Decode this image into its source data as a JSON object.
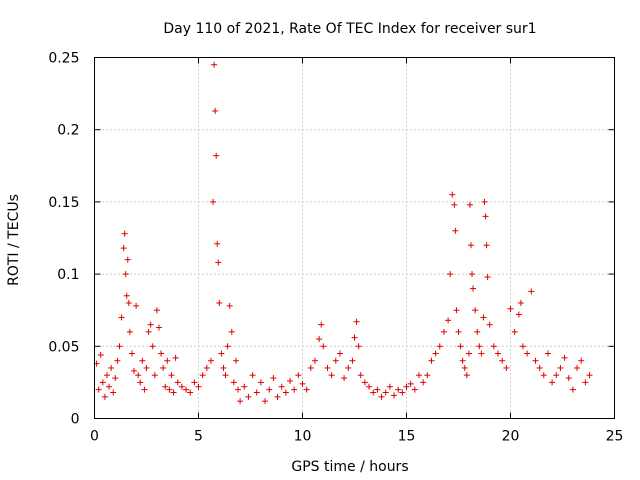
{
  "chart_data": {
    "type": "scatter",
    "title": "Day 110 of 2021, Rate Of TEC Index for receiver sur1",
    "xlabel": "GPS time / hours",
    "ylabel": "ROTI / TECUs",
    "xlim": [
      0,
      25
    ],
    "ylim": [
      0,
      0.25
    ],
    "x_ticks": [
      0,
      5,
      10,
      15,
      20,
      25
    ],
    "y_ticks": [
      0,
      0.05,
      0.1,
      0.15,
      0.2,
      0.25
    ],
    "x_tick_labels": [
      "0",
      "5",
      "10",
      "15",
      "20",
      "25"
    ],
    "y_tick_labels": [
      "0",
      "0.05",
      "0.1",
      "0.15",
      "0.2",
      "0.25"
    ],
    "grid": true,
    "marker": "+",
    "color": "#e00000",
    "series": [
      {
        "name": "ROTI",
        "x": [
          0.1,
          0.2,
          0.3,
          0.4,
          0.5,
          0.6,
          0.7,
          0.8,
          0.9,
          1.0,
          1.1,
          1.2,
          1.3,
          1.4,
          1.45,
          1.5,
          1.55,
          1.6,
          1.65,
          1.7,
          1.8,
          1.9,
          2.0,
          2.1,
          2.2,
          2.3,
          2.4,
          2.5,
          2.6,
          2.7,
          2.8,
          2.9,
          3.0,
          3.1,
          3.2,
          3.3,
          3.4,
          3.5,
          3.6,
          3.7,
          3.8,
          3.9,
          4.0,
          4.2,
          4.4,
          4.6,
          4.8,
          5.0,
          5.2,
          5.4,
          5.6,
          5.7,
          5.75,
          5.8,
          5.85,
          5.9,
          5.95,
          6.0,
          6.1,
          6.2,
          6.3,
          6.4,
          6.5,
          6.6,
          6.7,
          6.8,
          6.9,
          7.0,
          7.2,
          7.4,
          7.6,
          7.8,
          8.0,
          8.2,
          8.4,
          8.6,
          8.8,
          9.0,
          9.2,
          9.4,
          9.6,
          9.8,
          10.0,
          10.2,
          10.4,
          10.6,
          10.8,
          10.9,
          11.0,
          11.2,
          11.4,
          11.6,
          11.8,
          12.0,
          12.2,
          12.4,
          12.5,
          12.6,
          12.7,
          12.8,
          13.0,
          13.2,
          13.4,
          13.6,
          13.8,
          14.0,
          14.2,
          14.4,
          14.6,
          14.8,
          15.0,
          15.2,
          15.4,
          15.6,
          15.8,
          16.0,
          16.2,
          16.4,
          16.6,
          16.8,
          17.0,
          17.1,
          17.2,
          17.3,
          17.35,
          17.4,
          17.5,
          17.6,
          17.7,
          17.8,
          17.9,
          18.0,
          18.05,
          18.1,
          18.15,
          18.2,
          18.3,
          18.4,
          18.5,
          18.6,
          18.7,
          18.75,
          18.8,
          18.85,
          18.9,
          19.0,
          19.2,
          19.4,
          19.6,
          19.8,
          20.0,
          20.2,
          20.4,
          20.5,
          20.6,
          20.8,
          21.0,
          21.2,
          21.4,
          21.6,
          21.8,
          22.0,
          22.2,
          22.4,
          22.6,
          22.8,
          23.0,
          23.2,
          23.4,
          23.6,
          23.8
        ],
        "y": [
          0.038,
          0.02,
          0.044,
          0.025,
          0.015,
          0.03,
          0.022,
          0.035,
          0.018,
          0.028,
          0.04,
          0.05,
          0.07,
          0.118,
          0.128,
          0.1,
          0.085,
          0.11,
          0.08,
          0.06,
          0.045,
          0.033,
          0.078,
          0.03,
          0.025,
          0.04,
          0.02,
          0.035,
          0.06,
          0.065,
          0.05,
          0.03,
          0.075,
          0.063,
          0.045,
          0.035,
          0.022,
          0.04,
          0.02,
          0.03,
          0.018,
          0.042,
          0.025,
          0.022,
          0.02,
          0.018,
          0.025,
          0.022,
          0.03,
          0.035,
          0.04,
          0.15,
          0.245,
          0.213,
          0.182,
          0.121,
          0.108,
          0.08,
          0.045,
          0.035,
          0.03,
          0.05,
          0.078,
          0.06,
          0.025,
          0.04,
          0.02,
          0.012,
          0.022,
          0.015,
          0.03,
          0.018,
          0.025,
          0.012,
          0.02,
          0.028,
          0.015,
          0.022,
          0.018,
          0.026,
          0.02,
          0.03,
          0.024,
          0.02,
          0.035,
          0.04,
          0.055,
          0.065,
          0.05,
          0.035,
          0.03,
          0.04,
          0.045,
          0.028,
          0.035,
          0.04,
          0.056,
          0.067,
          0.05,
          0.03,
          0.025,
          0.022,
          0.018,
          0.02,
          0.015,
          0.018,
          0.022,
          0.016,
          0.02,
          0.018,
          0.022,
          0.024,
          0.02,
          0.03,
          0.025,
          0.03,
          0.04,
          0.045,
          0.05,
          0.06,
          0.068,
          0.1,
          0.155,
          0.148,
          0.13,
          0.075,
          0.06,
          0.05,
          0.04,
          0.035,
          0.03,
          0.045,
          0.148,
          0.12,
          0.1,
          0.09,
          0.075,
          0.06,
          0.05,
          0.045,
          0.07,
          0.15,
          0.14,
          0.12,
          0.098,
          0.065,
          0.05,
          0.045,
          0.04,
          0.035,
          0.076,
          0.06,
          0.072,
          0.08,
          0.05,
          0.045,
          0.088,
          0.04,
          0.035,
          0.03,
          0.045,
          0.025,
          0.03,
          0.035,
          0.042,
          0.028,
          0.02,
          0.035,
          0.04,
          0.025,
          0.03
        ]
      }
    ]
  }
}
